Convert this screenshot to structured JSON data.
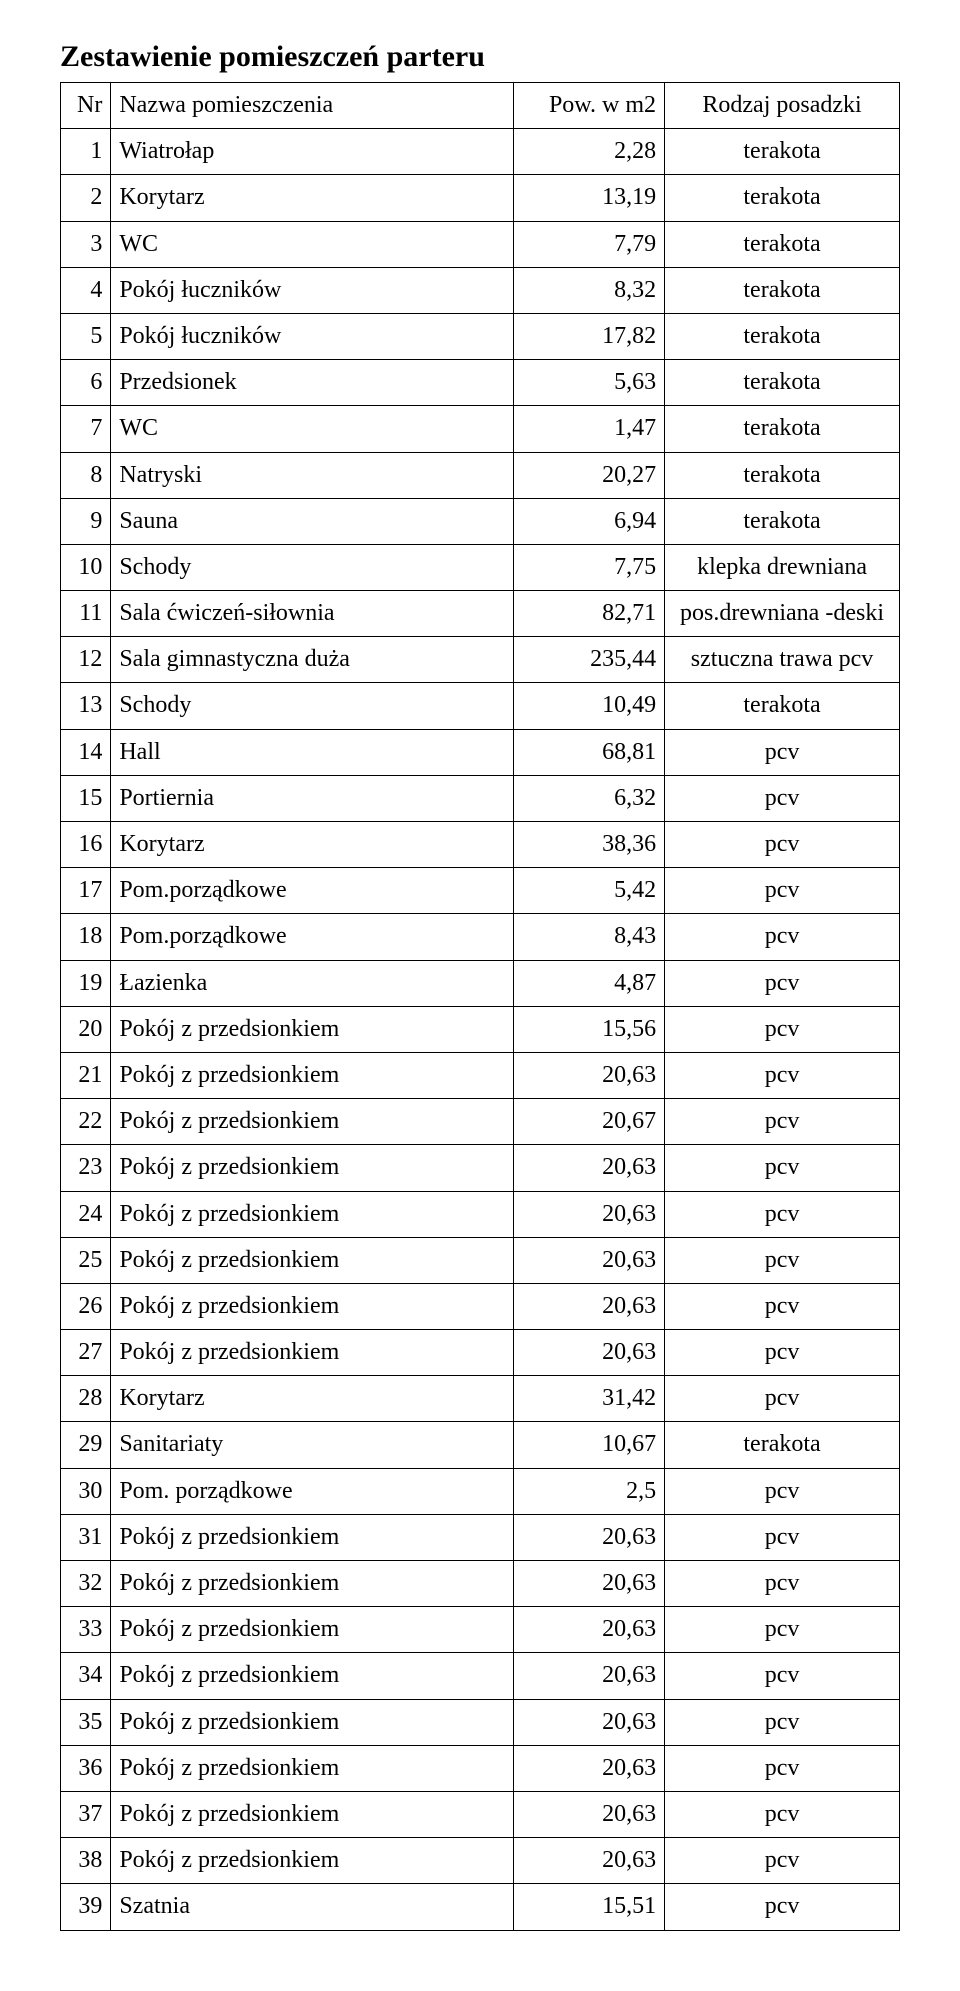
{
  "title": "Zestawienie pomieszczeń parteru",
  "columns": {
    "nr": "Nr",
    "name": "Nazwa pomieszczenia",
    "pow": "Pow. w m2",
    "rodzaj": "Rodzaj posadzki"
  },
  "rows": [
    {
      "nr": "1",
      "name": "Wiatrołap",
      "pow": "2,28",
      "rod": "terakota"
    },
    {
      "nr": "2",
      "name": "Korytarz",
      "pow": "13,19",
      "rod": "terakota"
    },
    {
      "nr": "3",
      "name": "WC",
      "pow": "7,79",
      "rod": "terakota"
    },
    {
      "nr": "4",
      "name": "Pokój łuczników",
      "pow": "8,32",
      "rod": "terakota"
    },
    {
      "nr": "5",
      "name": "Pokój łuczników",
      "pow": "17,82",
      "rod": "terakota"
    },
    {
      "nr": "6",
      "name": "Przedsionek",
      "pow": "5,63",
      "rod": "terakota"
    },
    {
      "nr": "7",
      "name": "WC",
      "pow": "1,47",
      "rod": "terakota"
    },
    {
      "nr": "8",
      "name": "Natryski",
      "pow": "20,27",
      "rod": "terakota"
    },
    {
      "nr": "9",
      "name": "Sauna",
      "pow": "6,94",
      "rod": "terakota"
    },
    {
      "nr": "10",
      "name": "Schody",
      "pow": "7,75",
      "rod": "klepka drewniana"
    },
    {
      "nr": "11",
      "name": "Sala ćwiczeń-siłownia",
      "pow": "82,71",
      "rod": "pos.drewniana -deski"
    },
    {
      "nr": "12",
      "name": "Sala gimnastyczna duża",
      "pow": "235,44",
      "rod": "sztuczna trawa pcv"
    },
    {
      "nr": "13",
      "name": "Schody",
      "pow": "10,49",
      "rod": "terakota"
    },
    {
      "nr": "14",
      "name": "Hall",
      "pow": "68,81",
      "rod": "pcv"
    },
    {
      "nr": "15",
      "name": "Portiernia",
      "pow": "6,32",
      "rod": "pcv"
    },
    {
      "nr": "16",
      "name": "Korytarz",
      "pow": "38,36",
      "rod": "pcv"
    },
    {
      "nr": "17",
      "name": "Pom.porządkowe",
      "pow": "5,42",
      "rod": "pcv"
    },
    {
      "nr": "18",
      "name": "Pom.porządkowe",
      "pow": "8,43",
      "rod": "pcv"
    },
    {
      "nr": "19",
      "name": "Łazienka",
      "pow": "4,87",
      "rod": "pcv"
    },
    {
      "nr": "20",
      "name": "Pokój z przedsionkiem",
      "pow": "15,56",
      "rod": "pcv"
    },
    {
      "nr": "21",
      "name": "Pokój z przedsionkiem",
      "pow": "20,63",
      "rod": "pcv"
    },
    {
      "nr": "22",
      "name": "Pokój z przedsionkiem",
      "pow": "20,67",
      "rod": "pcv"
    },
    {
      "nr": "23",
      "name": "Pokój z przedsionkiem",
      "pow": "20,63",
      "rod": "pcv"
    },
    {
      "nr": "24",
      "name": "Pokój z przedsionkiem",
      "pow": "20,63",
      "rod": "pcv"
    },
    {
      "nr": "25",
      "name": "Pokój z przedsionkiem",
      "pow": "20,63",
      "rod": "pcv"
    },
    {
      "nr": "26",
      "name": "Pokój z przedsionkiem",
      "pow": "20,63",
      "rod": "pcv"
    },
    {
      "nr": "27",
      "name": "Pokój z przedsionkiem",
      "pow": "20,63",
      "rod": "pcv"
    },
    {
      "nr": "28",
      "name": "Korytarz",
      "pow": "31,42",
      "rod": "pcv"
    },
    {
      "nr": "29",
      "name": "Sanitariaty",
      "pow": "10,67",
      "rod": "terakota"
    },
    {
      "nr": "30",
      "name": "Pom. porządkowe",
      "pow": "2,5",
      "rod": "pcv"
    },
    {
      "nr": "31",
      "name": "Pokój z przedsionkiem",
      "pow": "20,63",
      "rod": "pcv"
    },
    {
      "nr": "32",
      "name": "Pokój z przedsionkiem",
      "pow": "20,63",
      "rod": "pcv"
    },
    {
      "nr": "33",
      "name": "Pokój z przedsionkiem",
      "pow": "20,63",
      "rod": "pcv"
    },
    {
      "nr": "34",
      "name": "Pokój z przedsionkiem",
      "pow": "20,63",
      "rod": "pcv"
    },
    {
      "nr": "35",
      "name": "Pokój z przedsionkiem",
      "pow": "20,63",
      "rod": "pcv"
    },
    {
      "nr": "36",
      "name": "Pokój z przedsionkiem",
      "pow": "20,63",
      "rod": "pcv"
    },
    {
      "nr": "37",
      "name": "Pokój z przedsionkiem",
      "pow": "20,63",
      "rod": "pcv"
    },
    {
      "nr": "38",
      "name": "Pokój z przedsionkiem",
      "pow": "20,63",
      "rod": "pcv"
    },
    {
      "nr": "39",
      "name": "Szatnia",
      "pow": "15,51",
      "rod": "pcv"
    }
  ]
}
